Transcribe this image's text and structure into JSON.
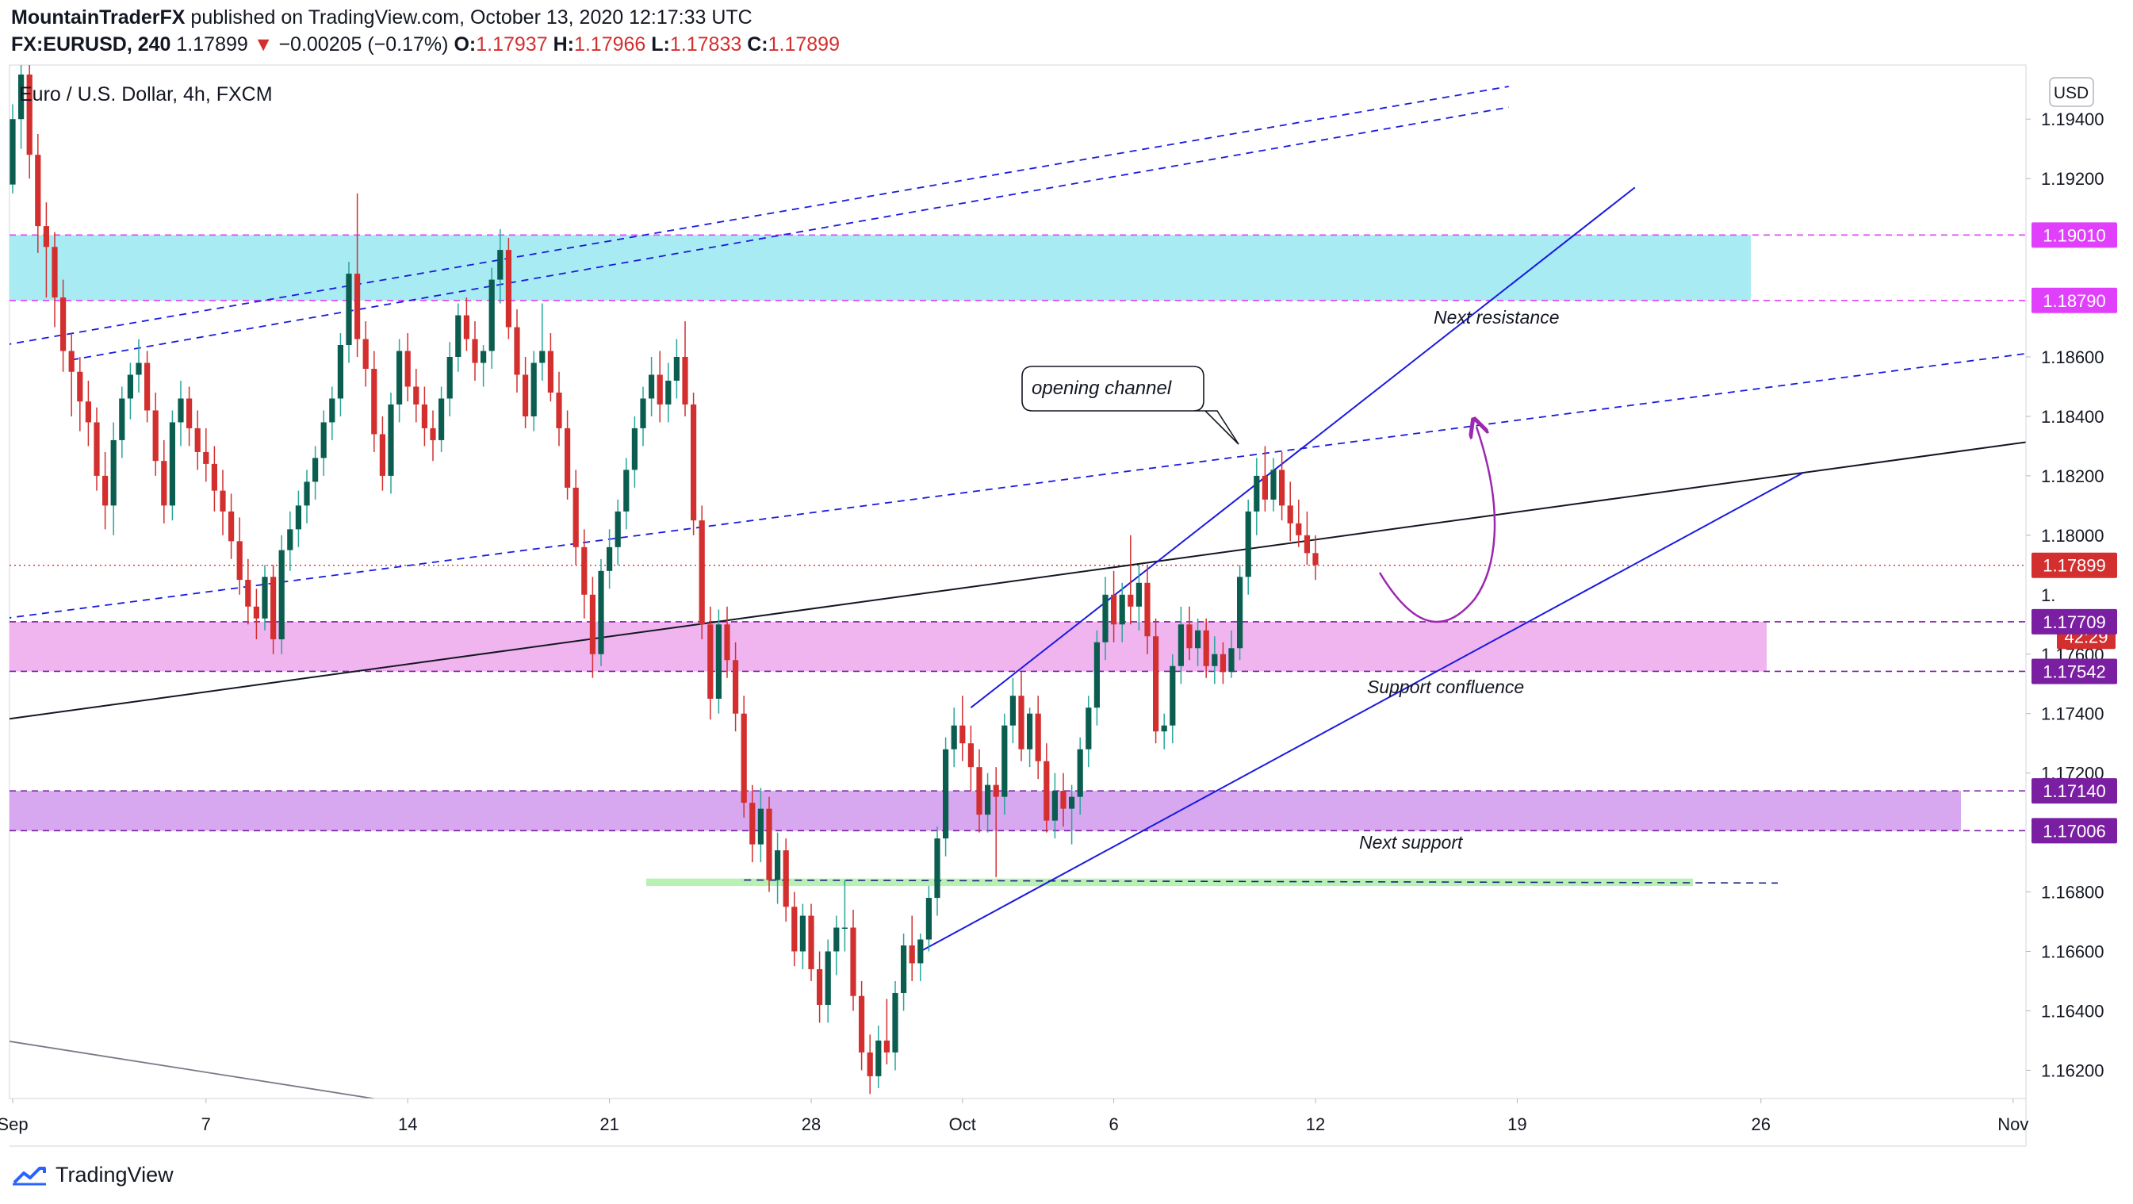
{
  "header": {
    "author": "MountainTraderFX",
    "published": "published on TradingView.com, October 13, 2020 12:17:33 UTC",
    "symbol": "FX:EURUSD, 240",
    "last": "1.17899",
    "arrow": "▼",
    "change": "−0.00205 (−0.17%)",
    "o_label": "O:",
    "o_value": "1.17937",
    "h_label": "H:",
    "h_value": "1.17966",
    "l_label": "L:",
    "l_value": "1.17833",
    "c_label": "C:",
    "c_value": "1.17899"
  },
  "legend_title": "Euro / U.S. Dollar, 4h, FXCM",
  "currency_button": "USD",
  "footer": {
    "brand": "TradingView"
  },
  "colors": {
    "up": "#26a69a",
    "up_body": "#0b5e4f",
    "down": "#d32f2f",
    "resistance_zone": "#a8ebf2",
    "support_zone": "#f0b4ef",
    "next_support_zone": "#d7a8f0",
    "green_zone": "#b9f0b4",
    "magenta_line": "#e040fb",
    "violet_line": "#7b1fa2",
    "trend_blue": "#1a1ae0",
    "curve_purple": "#9c27b0"
  },
  "annotations": {
    "callout": "opening channel",
    "next_resistance": "Next resistance",
    "support_confluence": "Support confluence",
    "next_support": "Next support"
  },
  "price_tags": [
    {
      "label": "1.19010",
      "price": 1.1901,
      "color": "#e040fb"
    },
    {
      "label": "1.18790",
      "price": 1.1879,
      "color": "#e040fb"
    },
    {
      "label": "1.17899",
      "price": 1.17899,
      "color": "#d32f2f"
    },
    {
      "label": "42:29",
      "price": 1.1766,
      "color": "#d32f2f"
    },
    {
      "label": "1.17709",
      "price": 1.17709,
      "color": "#7b1fa2"
    },
    {
      "label": "1.17542",
      "price": 1.17542,
      "color": "#7b1fa2"
    },
    {
      "label": "1.17140",
      "price": 1.1714,
      "color": "#7b1fa2"
    },
    {
      "label": "1.17006",
      "price": 1.17006,
      "color": "#7b1fa2"
    }
  ],
  "chart_data": {
    "type": "candlestick",
    "title": "Euro / U.S. Dollar, 4h, FXCM",
    "ylim": [
      1.16105,
      1.19582
    ],
    "y_ticks": [
      1.194,
      1.192,
      1.186,
      1.184,
      1.182,
      1.18,
      1.176,
      1.174,
      1.172,
      1.168,
      1.166,
      1.164,
      1.162
    ],
    "y_tick_labels": [
      "1.19400",
      "1.19200",
      "1.18600",
      "1.18400",
      "1.18200",
      "1.18000",
      "1.17600",
      "1.17400",
      "1.17200",
      "1.16800",
      "1.16600",
      "1.16400",
      "1.16200"
    ],
    "partial_tick_label": "1.",
    "x_tick_labels": [
      "Sep",
      "7",
      "14",
      "21",
      "28",
      "Oct",
      "6",
      "12",
      "19",
      "26",
      "Nov"
    ],
    "x_tick_bars": [
      0,
      23,
      47,
      71,
      95,
      113,
      131,
      155,
      179,
      208,
      238
    ],
    "zones": [
      {
        "name": "Next resistance",
        "from": 1.1879,
        "to": 1.1901
      },
      {
        "name": "Support confluence",
        "from": 1.17542,
        "to": 1.17709
      },
      {
        "name": "Next support",
        "from": 1.17006,
        "to": 1.1714
      },
      {
        "name": "Green zone",
        "from": 1.1682,
        "to": 1.16845
      }
    ],
    "candles": [
      [
        1.1918,
        1.1945,
        1.1915,
        1.194
      ],
      [
        1.194,
        1.1965,
        1.193,
        1.1955
      ],
      [
        1.1955,
        1.196,
        1.192,
        1.1928
      ],
      [
        1.1928,
        1.1935,
        1.1895,
        1.1904
      ],
      [
        1.1904,
        1.1912,
        1.188,
        1.1897
      ],
      [
        1.1897,
        1.1902,
        1.187,
        1.188
      ],
      [
        1.188,
        1.1886,
        1.1855,
        1.1862
      ],
      [
        1.1862,
        1.1868,
        1.184,
        1.1855
      ],
      [
        1.1855,
        1.186,
        1.1835,
        1.1845
      ],
      [
        1.1845,
        1.1852,
        1.183,
        1.1838
      ],
      [
        1.1838,
        1.1843,
        1.1815,
        1.182
      ],
      [
        1.182,
        1.1828,
        1.1802,
        1.181
      ],
      [
        1.181,
        1.1838,
        1.18,
        1.1832
      ],
      [
        1.1832,
        1.185,
        1.1826,
        1.1846
      ],
      [
        1.1846,
        1.1858,
        1.1839,
        1.1854
      ],
      [
        1.1854,
        1.1866,
        1.1848,
        1.1858
      ],
      [
        1.1858,
        1.1862,
        1.1838,
        1.1842
      ],
      [
        1.1842,
        1.1848,
        1.182,
        1.1825
      ],
      [
        1.1825,
        1.1832,
        1.1804,
        1.181
      ],
      [
        1.181,
        1.1842,
        1.1805,
        1.1838
      ],
      [
        1.1838,
        1.1852,
        1.183,
        1.1846
      ],
      [
        1.1846,
        1.185,
        1.183,
        1.1836
      ],
      [
        1.1836,
        1.1842,
        1.1822,
        1.1828
      ],
      [
        1.1828,
        1.1836,
        1.1818,
        1.1824
      ],
      [
        1.1824,
        1.183,
        1.1808,
        1.1815
      ],
      [
        1.1815,
        1.1822,
        1.18,
        1.1808
      ],
      [
        1.1808,
        1.1814,
        1.1792,
        1.1798
      ],
      [
        1.1798,
        1.1806,
        1.178,
        1.1785
      ],
      [
        1.1785,
        1.1792,
        1.177,
        1.1776
      ],
      [
        1.1776,
        1.1782,
        1.1765,
        1.1772
      ],
      [
        1.1772,
        1.179,
        1.1768,
        1.1786
      ],
      [
        1.1786,
        1.179,
        1.176,
        1.1765
      ],
      [
        1.1765,
        1.18,
        1.176,
        1.1795
      ],
      [
        1.1795,
        1.1808,
        1.1788,
        1.1802
      ],
      [
        1.1802,
        1.1815,
        1.1796,
        1.181
      ],
      [
        1.181,
        1.1822,
        1.1804,
        1.1818
      ],
      [
        1.1818,
        1.183,
        1.1812,
        1.1826
      ],
      [
        1.1826,
        1.1842,
        1.182,
        1.1838
      ],
      [
        1.1838,
        1.185,
        1.1832,
        1.1846
      ],
      [
        1.1846,
        1.1868,
        1.184,
        1.1864
      ],
      [
        1.1864,
        1.1892,
        1.1858,
        1.1888
      ],
      [
        1.1888,
        1.1915,
        1.186,
        1.1866
      ],
      [
        1.1866,
        1.1872,
        1.185,
        1.1856
      ],
      [
        1.1856,
        1.1862,
        1.1828,
        1.1834
      ],
      [
        1.1834,
        1.184,
        1.1815,
        1.182
      ],
      [
        1.182,
        1.1848,
        1.1814,
        1.1844
      ],
      [
        1.1844,
        1.1866,
        1.1838,
        1.1862
      ],
      [
        1.1862,
        1.1868,
        1.1845,
        1.185
      ],
      [
        1.185,
        1.1856,
        1.1838,
        1.1844
      ],
      [
        1.1844,
        1.185,
        1.183,
        1.1836
      ],
      [
        1.1836,
        1.1842,
        1.1825,
        1.1832
      ],
      [
        1.1832,
        1.185,
        1.1828,
        1.1846
      ],
      [
        1.1846,
        1.1865,
        1.184,
        1.186
      ],
      [
        1.186,
        1.1878,
        1.1855,
        1.1874
      ],
      [
        1.1874,
        1.188,
        1.1862,
        1.1866
      ],
      [
        1.1866,
        1.1872,
        1.1852,
        1.1858
      ],
      [
        1.1858,
        1.1864,
        1.185,
        1.1862
      ],
      [
        1.1862,
        1.189,
        1.1856,
        1.1886
      ],
      [
        1.1886,
        1.1903,
        1.1878,
        1.1896
      ],
      [
        1.1896,
        1.19,
        1.1866,
        1.187
      ],
      [
        1.187,
        1.1876,
        1.1848,
        1.1854
      ],
      [
        1.1854,
        1.186,
        1.1836,
        1.184
      ],
      [
        1.184,
        1.1862,
        1.1835,
        1.1858
      ],
      [
        1.1858,
        1.1878,
        1.1852,
        1.1862
      ],
      [
        1.1862,
        1.1868,
        1.1845,
        1.1848
      ],
      [
        1.1848,
        1.1855,
        1.183,
        1.1836
      ],
      [
        1.1836,
        1.1842,
        1.1812,
        1.1816
      ],
      [
        1.1816,
        1.1822,
        1.179,
        1.1796
      ],
      [
        1.1796,
        1.1802,
        1.1772,
        1.178
      ],
      [
        1.178,
        1.1786,
        1.1752,
        1.176
      ],
      [
        1.176,
        1.1792,
        1.1756,
        1.1788
      ],
      [
        1.1788,
        1.1802,
        1.1782,
        1.1796
      ],
      [
        1.1796,
        1.1812,
        1.179,
        1.1808
      ],
      [
        1.1808,
        1.1826,
        1.1802,
        1.1822
      ],
      [
        1.1822,
        1.184,
        1.1816,
        1.1836
      ],
      [
        1.1836,
        1.185,
        1.183,
        1.1846
      ],
      [
        1.1846,
        1.186,
        1.184,
        1.1854
      ],
      [
        1.1854,
        1.1862,
        1.1838,
        1.1844
      ],
      [
        1.1844,
        1.1858,
        1.1838,
        1.1852
      ],
      [
        1.1852,
        1.1866,
        1.1846,
        1.186
      ],
      [
        1.186,
        1.1872,
        1.184,
        1.1844
      ],
      [
        1.1844,
        1.1848,
        1.18,
        1.1805
      ],
      [
        1.1805,
        1.181,
        1.1765,
        1.177
      ],
      [
        1.177,
        1.1776,
        1.1738,
        1.1745
      ],
      [
        1.1745,
        1.1775,
        1.174,
        1.177
      ],
      [
        1.177,
        1.1776,
        1.1752,
        1.1758
      ],
      [
        1.1758,
        1.1764,
        1.1734,
        1.174
      ],
      [
        1.174,
        1.1746,
        1.1705,
        1.171
      ],
      [
        1.171,
        1.1716,
        1.169,
        1.1696
      ],
      [
        1.1696,
        1.1715,
        1.169,
        1.1708
      ],
      [
        1.1708,
        1.1712,
        1.168,
        1.1684
      ],
      [
        1.1684,
        1.17,
        1.1676,
        1.1694
      ],
      [
        1.1694,
        1.1698,
        1.167,
        1.1675
      ],
      [
        1.1675,
        1.168,
        1.1655,
        1.166
      ],
      [
        1.166,
        1.1676,
        1.1654,
        1.1672
      ],
      [
        1.1672,
        1.1676,
        1.165,
        1.1654
      ],
      [
        1.1654,
        1.166,
        1.1636,
        1.1642
      ],
      [
        1.1642,
        1.1664,
        1.1636,
        1.166
      ],
      [
        1.166,
        1.1672,
        1.1652,
        1.1668
      ],
      [
        1.1668,
        1.1684,
        1.166,
        1.1668
      ],
      [
        1.1668,
        1.1674,
        1.164,
        1.1645
      ],
      [
        1.1645,
        1.165,
        1.162,
        1.1626
      ],
      [
        1.1626,
        1.1632,
        1.1612,
        1.1618
      ],
      [
        1.1618,
        1.1635,
        1.1614,
        1.163
      ],
      [
        1.163,
        1.1644,
        1.1622,
        1.1626
      ],
      [
        1.1626,
        1.165,
        1.162,
        1.1646
      ],
      [
        1.1646,
        1.1666,
        1.164,
        1.1662
      ],
      [
        1.1662,
        1.1672,
        1.165,
        1.1656
      ],
      [
        1.1656,
        1.1666,
        1.165,
        1.1664
      ],
      [
        1.1664,
        1.1682,
        1.166,
        1.1678
      ],
      [
        1.1678,
        1.1702,
        1.1672,
        1.1698
      ],
      [
        1.1698,
        1.1732,
        1.1692,
        1.1728
      ],
      [
        1.1728,
        1.1742,
        1.1722,
        1.1736
      ],
      [
        1.1736,
        1.1746,
        1.1724,
        1.173
      ],
      [
        1.173,
        1.1736,
        1.1714,
        1.1722
      ],
      [
        1.1722,
        1.1728,
        1.17,
        1.1706
      ],
      [
        1.1706,
        1.172,
        1.17,
        1.1716
      ],
      [
        1.1716,
        1.1722,
        1.1685,
        1.1712
      ],
      [
        1.1712,
        1.174,
        1.1706,
        1.1736
      ],
      [
        1.1736,
        1.1752,
        1.173,
        1.1746
      ],
      [
        1.1746,
        1.1754,
        1.1724,
        1.1728
      ],
      [
        1.1728,
        1.1742,
        1.1722,
        1.174
      ],
      [
        1.174,
        1.1746,
        1.1718,
        1.1724
      ],
      [
        1.1724,
        1.173,
        1.17,
        1.1704
      ],
      [
        1.1704,
        1.172,
        1.1698,
        1.1714
      ],
      [
        1.1714,
        1.172,
        1.1702,
        1.1708
      ],
      [
        1.1708,
        1.1716,
        1.1696,
        1.1712
      ],
      [
        1.1712,
        1.1732,
        1.1706,
        1.1728
      ],
      [
        1.1728,
        1.1746,
        1.1722,
        1.1742
      ],
      [
        1.1742,
        1.1768,
        1.1736,
        1.1764
      ],
      [
        1.1764,
        1.1786,
        1.1758,
        1.178
      ],
      [
        1.178,
        1.1788,
        1.1764,
        1.177
      ],
      [
        1.177,
        1.1784,
        1.1764,
        1.178
      ],
      [
        1.178,
        1.18,
        1.177,
        1.1776
      ],
      [
        1.1776,
        1.179,
        1.1768,
        1.1784
      ],
      [
        1.1784,
        1.179,
        1.176,
        1.1766
      ],
      [
        1.1766,
        1.1772,
        1.173,
        1.1734
      ],
      [
        1.1734,
        1.174,
        1.1728,
        1.1736
      ],
      [
        1.1736,
        1.176,
        1.173,
        1.1756
      ],
      [
        1.1756,
        1.1776,
        1.175,
        1.177
      ],
      [
        1.177,
        1.1776,
        1.1758,
        1.1762
      ],
      [
        1.1762,
        1.1772,
        1.1756,
        1.1768
      ],
      [
        1.1768,
        1.1772,
        1.1752,
        1.1756
      ],
      [
        1.1756,
        1.1766,
        1.175,
        1.176
      ],
      [
        1.176,
        1.1764,
        1.175,
        1.1754
      ],
      [
        1.1754,
        1.1768,
        1.1752,
        1.1762
      ],
      [
        1.1762,
        1.179,
        1.1758,
        1.1786
      ],
      [
        1.1786,
        1.1812,
        1.178,
        1.1808
      ],
      [
        1.1808,
        1.1826,
        1.18,
        1.182
      ],
      [
        1.182,
        1.183,
        1.1808,
        1.1812
      ],
      [
        1.1812,
        1.1826,
        1.1808,
        1.1822
      ],
      [
        1.1822,
        1.1828,
        1.1805,
        1.181
      ],
      [
        1.181,
        1.1818,
        1.1798,
        1.1804
      ],
      [
        1.1804,
        1.1812,
        1.1796,
        1.18
      ],
      [
        1.18,
        1.1808,
        1.179,
        1.1794
      ],
      [
        1.1794,
        1.18,
        1.1785,
        1.179
      ]
    ],
    "trendlines": [
      {
        "name": "long-trend",
        "from": [
          -1,
          1.1738
        ],
        "to": [
          249,
          1.1835
        ]
      },
      {
        "name": "channel-lower",
        "from": [
          108,
          1.166
        ],
        "to": [
          213,
          1.1821
        ]
      },
      {
        "name": "channel-upper",
        "from": [
          114,
          1.1742
        ],
        "to": [
          193,
          1.1917
        ]
      },
      {
        "name": "dashed-upper-1",
        "from": [
          -1,
          1.1864
        ],
        "to": [
          178,
          1.1951
        ]
      },
      {
        "name": "dashed-upper-2",
        "from": [
          7,
          1.1859
        ],
        "to": [
          178,
          1.1944
        ]
      },
      {
        "name": "dashed-lower",
        "from": [
          -1,
          1.1772
        ],
        "to": [
          250,
          1.1865
        ]
      },
      {
        "name": "green-dashed",
        "from": [
          87,
          1.1684
        ],
        "to": [
          210,
          1.1683
        ]
      },
      {
        "name": "grey-line",
        "from": [
          -1,
          1.163
        ],
        "to": [
          44,
          1.161
        ]
      }
    ]
  }
}
